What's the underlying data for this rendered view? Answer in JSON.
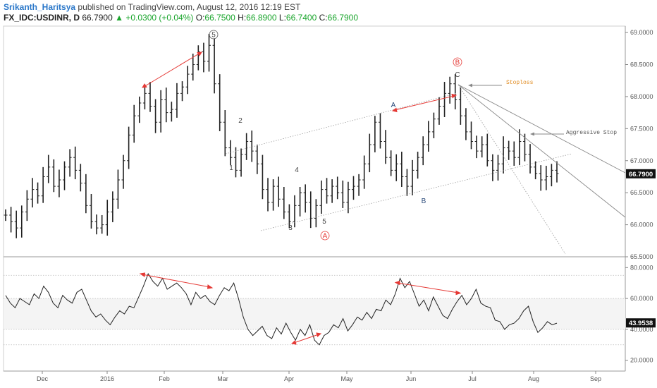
{
  "header": {
    "author": "Srikanth_Haritsya",
    "published": "published on TradingView.com, August 12, 2016 12:19 EST",
    "symbol": "FX_IDC:USDINR, D",
    "last": "66.7900",
    "change": "+0.0300 (+0.04%)",
    "o_label": "O:",
    "o_value": "66.7500",
    "h_label": "H:",
    "h_value": "66.8900",
    "l_label": "L:",
    "l_value": "66.7400",
    "c_label": "C:",
    "c_value": "66.7900"
  },
  "colors": {
    "accent_red": "#e53935",
    "positive": "#1aa52c",
    "author": "#2a77c9"
  },
  "chart_data": [
    {
      "type": "ohlc",
      "title": "FX_IDC:USDINR, D",
      "ylim": [
        65.5,
        69.1
      ],
      "y_ticks": [
        "65.5000",
        "66.0000",
        "66.5000",
        "67.0000",
        "67.5000",
        "68.0000",
        "68.5000",
        "69.0000"
      ],
      "x_ticks": [
        "Dec",
        "2016",
        "Feb",
        "Mar",
        "Apr",
        "May",
        "Jun",
        "Jul",
        "Aug",
        "Sep"
      ],
      "last_price_label": "66.7900",
      "closes": [
        66.15,
        66.05,
        65.95,
        66.2,
        66.4,
        66.55,
        66.45,
        66.75,
        66.9,
        66.6,
        66.7,
        66.9,
        67.05,
        66.85,
        66.65,
        66.3,
        66.05,
        65.95,
        66.0,
        66.2,
        66.4,
        66.7,
        67.0,
        67.4,
        67.7,
        67.9,
        68.05,
        67.85,
        67.6,
        67.95,
        67.75,
        67.8,
        68.05,
        68.15,
        68.35,
        68.5,
        68.7,
        68.55,
        68.8,
        68.2,
        67.6,
        67.2,
        67.05,
        66.85,
        67.1,
        67.3,
        67.15,
        66.95,
        66.55,
        66.35,
        66.6,
        66.4,
        66.2,
        66.05,
        66.3,
        66.5,
        66.35,
        66.1,
        66.3,
        66.55,
        66.45,
        66.6,
        66.5,
        66.35,
        66.55,
        66.6,
        66.7,
        66.95,
        67.25,
        67.6,
        67.3,
        67.05,
        66.85,
        66.95,
        66.75,
        66.6,
        66.85,
        67.05,
        67.25,
        67.45,
        67.65,
        67.85,
        68.05,
        68.2,
        67.95,
        67.7,
        67.45,
        67.3,
        67.15,
        67.25,
        67.0,
        66.85,
        66.95,
        67.2,
        67.15,
        67.05,
        67.3,
        67.1,
        66.9,
        66.8,
        66.7,
        66.75,
        66.85,
        66.8
      ],
      "series": [
        {
          "name": "",
          "color": "#222222"
        }
      ],
      "annotations": [
        "5",
        "B",
        "C",
        "2",
        "1",
        "4",
        "3",
        "5",
        "A",
        "B",
        "A",
        "Stoploss",
        "Aggressive Stop"
      ]
    },
    {
      "type": "line",
      "ylim": [
        13,
        87
      ],
      "y_ticks": [
        "20.0000",
        "40.0000",
        "60.0000",
        "80.0000"
      ],
      "reference_lines": [
        30,
        60,
        75,
        40
      ],
      "last_value_label": "43.9538",
      "values": [
        62,
        57,
        54,
        60,
        58,
        56,
        63,
        60,
        68,
        64,
        57,
        54,
        62,
        59,
        57,
        64,
        66,
        59,
        52,
        48,
        50,
        46,
        43,
        48,
        52,
        50,
        55,
        54,
        61,
        68,
        76,
        71,
        68,
        73,
        66,
        68,
        70,
        67,
        63,
        56,
        64,
        60,
        62,
        58,
        56,
        62,
        67,
        65,
        70,
        60,
        48,
        40,
        36,
        39,
        42,
        36,
        34,
        41,
        37,
        44,
        38,
        33,
        40,
        36,
        43,
        33,
        30,
        36,
        38,
        43,
        41,
        47,
        39,
        43,
        48,
        46,
        51,
        47,
        53,
        52,
        59,
        56,
        63,
        73,
        67,
        71,
        63,
        55,
        59,
        52,
        61,
        55,
        49,
        47,
        53,
        58,
        62,
        56,
        60,
        66,
        57,
        55,
        54,
        46,
        45,
        40,
        43,
        44,
        47,
        52,
        55,
        45,
        38,
        41,
        45,
        43,
        44
      ],
      "series": [
        {
          "name": "",
          "color": "#222222"
        }
      ]
    }
  ]
}
